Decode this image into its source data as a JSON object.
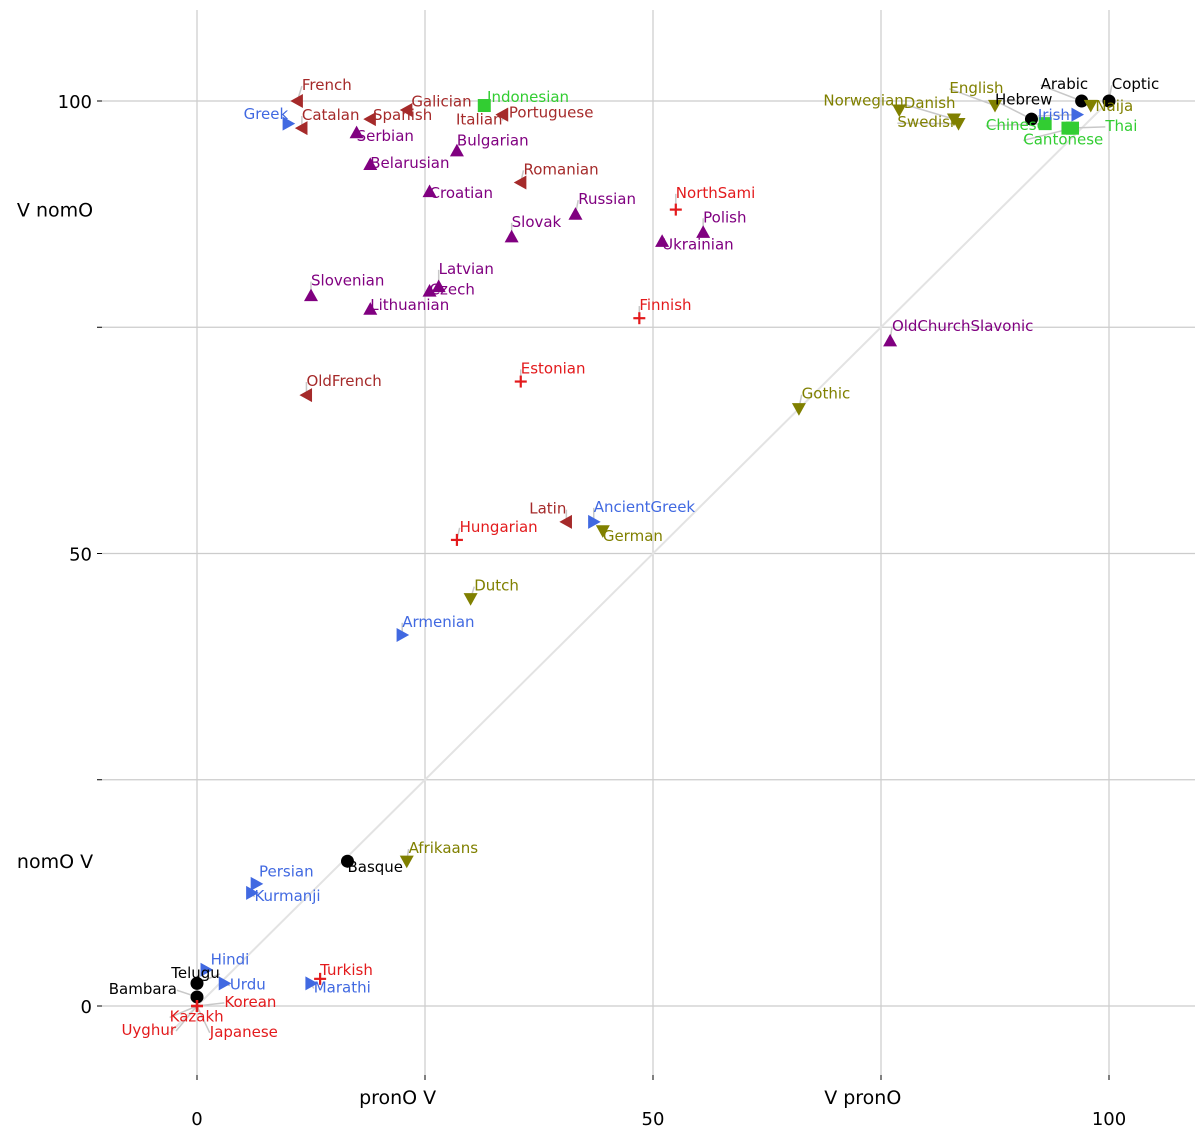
{
  "chart_data": {
    "type": "scatter",
    "title": "",
    "x_tick_labels": [
      {
        "value": 0,
        "text": "0"
      },
      {
        "value": 50,
        "text": "50"
      },
      {
        "value": 100,
        "text": "100"
      }
    ],
    "y_tick_labels": [
      {
        "value": 0,
        "text": "0"
      },
      {
        "value": 50,
        "text": "50"
      },
      {
        "value": 100,
        "text": "100"
      }
    ],
    "x_category_labels": [
      {
        "value": 22,
        "text": "pronO V"
      },
      {
        "value": 73,
        "text": "V pronO"
      }
    ],
    "y_category_labels": [
      {
        "value": 88,
        "text": "V nomO"
      },
      {
        "value": 16,
        "text": "nomO V"
      }
    ],
    "xlim": [
      -10,
      119
    ],
    "ylim": [
      -11,
      110
    ],
    "grid_x": [
      0,
      25,
      50,
      75,
      100
    ],
    "grid_y": [
      0,
      25,
      50,
      75,
      100
    ],
    "diagonal": true,
    "group_colors": {
      "romance": "#a52a2a",
      "slavic": "#800080",
      "germanic": "#808000",
      "indoiranian": "#4169e1",
      "uralic_altaic": "#e31a1c",
      "other": "#000000",
      "asian": "#32cd32"
    },
    "points": [
      {
        "name": "French",
        "x": 11,
        "y": 100,
        "group": "romance",
        "marker": "tri-left",
        "lx": 11.5,
        "ly": 101.2,
        "la": "start"
      },
      {
        "name": "Galician",
        "x": 23,
        "y": 99,
        "group": "romance",
        "marker": "tri-left",
        "lx": 23.5,
        "ly": 99.4,
        "la": "start"
      },
      {
        "name": "Indonesian",
        "x": 31.5,
        "y": 99.5,
        "group": "asian",
        "marker": "square",
        "lx": 31.8,
        "ly": 99.9,
        "la": "start"
      },
      {
        "name": "Greek",
        "x": 10,
        "y": 97.5,
        "group": "indoiranian",
        "marker": "tri-right",
        "lx": 10,
        "ly": 98,
        "la": "end"
      },
      {
        "name": "Catalan",
        "x": 11.5,
        "y": 97,
        "group": "romance",
        "marker": "tri-left",
        "lx": 11.5,
        "ly": 97.9,
        "la": "start"
      },
      {
        "name": "Spanish",
        "x": 19,
        "y": 98,
        "group": "romance",
        "marker": "tri-left",
        "lx": 19.3,
        "ly": 97.9,
        "la": "start"
      },
      {
        "name": "Italian",
        "x": 33.5,
        "y": 98.5,
        "group": "romance",
        "marker": "tri-left",
        "lx": 33.5,
        "ly": 97.4,
        "la": "end"
      },
      {
        "name": "Portuguese",
        "x": 33.5,
        "y": 98.5,
        "group": "romance",
        "marker": "tri-left",
        "lx": 34.2,
        "ly": 98.2,
        "la": "start"
      },
      {
        "name": "Serbian",
        "x": 17.5,
        "y": 96.5,
        "group": "slavic",
        "marker": "tri-up",
        "lx": 17.5,
        "ly": 95.6,
        "la": "start"
      },
      {
        "name": "Bulgarian",
        "x": 28.5,
        "y": 94.5,
        "group": "slavic",
        "marker": "tri-up",
        "lx": 28.5,
        "ly": 95.1,
        "la": "start"
      },
      {
        "name": "Belarusian",
        "x": 19,
        "y": 93,
        "group": "slavic",
        "marker": "tri-up",
        "lx": 19,
        "ly": 92.6,
        "la": "start"
      },
      {
        "name": "Romanian",
        "x": 35.5,
        "y": 91,
        "group": "romance",
        "marker": "tri-left",
        "lx": 35.8,
        "ly": 91.9,
        "la": "start"
      },
      {
        "name": "Croatian",
        "x": 25.5,
        "y": 90,
        "group": "slavic",
        "marker": "tri-up",
        "lx": 25.5,
        "ly": 89.3,
        "la": "start"
      },
      {
        "name": "Russian",
        "x": 41.5,
        "y": 87.5,
        "group": "slavic",
        "marker": "tri-up",
        "lx": 41.8,
        "ly": 88.6,
        "la": "start"
      },
      {
        "name": "NorthSami",
        "x": 52.5,
        "y": 88,
        "group": "uralic_altaic",
        "marker": "cross",
        "lx": 52.5,
        "ly": 89.3,
        "la": "start"
      },
      {
        "name": "Slovak",
        "x": 34.5,
        "y": 85,
        "group": "slavic",
        "marker": "tri-up",
        "lx": 34.5,
        "ly": 86.1,
        "la": "start"
      },
      {
        "name": "Polish",
        "x": 55.5,
        "y": 85.5,
        "group": "slavic",
        "marker": "tri-up",
        "lx": 55.5,
        "ly": 86.6,
        "la": "start"
      },
      {
        "name": "Ukrainian",
        "x": 51,
        "y": 84.5,
        "group": "slavic",
        "marker": "tri-up",
        "lx": 51,
        "ly": 83.6,
        "la": "start"
      },
      {
        "name": "Latvian",
        "x": 26.5,
        "y": 79.5,
        "group": "slavic",
        "marker": "tri-up",
        "lx": 26.5,
        "ly": 80.9,
        "la": "start"
      },
      {
        "name": "Slovenian",
        "x": 12.5,
        "y": 78.5,
        "group": "slavic",
        "marker": "tri-up",
        "lx": 12.5,
        "ly": 79.6,
        "la": "start"
      },
      {
        "name": "Czech",
        "x": 25.5,
        "y": 79,
        "group": "slavic",
        "marker": "tri-up",
        "lx": 25.5,
        "ly": 78.6,
        "la": "start"
      },
      {
        "name": "Lithuanian",
        "x": 19,
        "y": 77,
        "group": "slavic",
        "marker": "tri-up",
        "lx": 19,
        "ly": 76.9,
        "la": "start"
      },
      {
        "name": "Finnish",
        "x": 48.5,
        "y": 76,
        "group": "uralic_altaic",
        "marker": "cross",
        "lx": 48.5,
        "ly": 76.9,
        "la": "start"
      },
      {
        "name": "OldChurchSlavonic",
        "x": 76,
        "y": 73.5,
        "group": "slavic",
        "marker": "tri-up",
        "lx": 76.2,
        "ly": 74.6,
        "la": "start"
      },
      {
        "name": "Estonian",
        "x": 35.5,
        "y": 69,
        "group": "uralic_altaic",
        "marker": "cross",
        "lx": 35.5,
        "ly": 69.9,
        "la": "start"
      },
      {
        "name": "OldFrench",
        "x": 12,
        "y": 67.5,
        "group": "romance",
        "marker": "tri-left",
        "lx": 12,
        "ly": 68.5,
        "la": "start"
      },
      {
        "name": "Gothic",
        "x": 66,
        "y": 66,
        "group": "germanic",
        "marker": "tri-down",
        "lx": 66.3,
        "ly": 67.1,
        "la": "start"
      },
      {
        "name": "Latin",
        "x": 40.5,
        "y": 53.5,
        "group": "romance",
        "marker": "tri-left",
        "lx": 40.5,
        "ly": 54.4,
        "la": "end"
      },
      {
        "name": "AncientGreek",
        "x": 43.5,
        "y": 53.5,
        "group": "indoiranian",
        "marker": "tri-right",
        "lx": 43.5,
        "ly": 54.6,
        "la": "start"
      },
      {
        "name": "German",
        "x": 44.5,
        "y": 52.5,
        "group": "germanic",
        "marker": "tri-down",
        "lx": 44.5,
        "ly": 51.4,
        "la": "start"
      },
      {
        "name": "Hungarian",
        "x": 28.5,
        "y": 51.5,
        "group": "uralic_altaic",
        "marker": "cross",
        "lx": 28.8,
        "ly": 52.4,
        "la": "start"
      },
      {
        "name": "Dutch",
        "x": 30,
        "y": 45,
        "group": "germanic",
        "marker": "tri-down",
        "lx": 30.4,
        "ly": 45.9,
        "la": "start"
      },
      {
        "name": "Armenian",
        "x": 22.5,
        "y": 41,
        "group": "indoiranian",
        "marker": "tri-right",
        "lx": 22.5,
        "ly": 41.9,
        "la": "start"
      },
      {
        "name": "Afrikaans",
        "x": 23,
        "y": 16,
        "group": "germanic",
        "marker": "tri-down",
        "lx": 23.2,
        "ly": 16.9,
        "la": "start"
      },
      {
        "name": "Basque",
        "x": 16.5,
        "y": 16,
        "group": "other",
        "marker": "circle",
        "lx": 16.5,
        "ly": 14.8,
        "la": "start"
      },
      {
        "name": "Persian",
        "x": 6.5,
        "y": 13.5,
        "group": "indoiranian",
        "marker": "tri-right",
        "lx": 6.8,
        "ly": 14.3,
        "la": "start"
      },
      {
        "name": "Kurmanji",
        "x": 6,
        "y": 12.5,
        "group": "indoiranian",
        "marker": "tri-right",
        "lx": 6.3,
        "ly": 11.6,
        "la": "start"
      },
      {
        "name": "Hindi",
        "x": 1,
        "y": 4,
        "group": "indoiranian",
        "marker": "tri-right",
        "lx": 1.5,
        "ly": 4.6,
        "la": "start"
      },
      {
        "name": "Telugu",
        "x": 0,
        "y": 2.5,
        "group": "other",
        "marker": "circle",
        "lx": 2.5,
        "ly": 3.1,
        "la": "end"
      },
      {
        "name": "Urdu",
        "x": 3,
        "y": 2.5,
        "group": "indoiranian",
        "marker": "tri-right",
        "lx": 3.6,
        "ly": 1.8,
        "la": "start"
      },
      {
        "name": "Turkish",
        "x": 13.5,
        "y": 3,
        "group": "uralic_altaic",
        "marker": "cross",
        "lx": 13.5,
        "ly": 3.4,
        "la": "start"
      },
      {
        "name": "Marathi",
        "x": 12.5,
        "y": 2.5,
        "group": "indoiranian",
        "marker": "tri-right",
        "lx": 12.8,
        "ly": 1.5,
        "la": "start"
      },
      {
        "name": "Bambara",
        "x": 0,
        "y": 1,
        "group": "other",
        "marker": "circle",
        "lx": -2.2,
        "ly": 1.3,
        "la": "end"
      },
      {
        "name": "Korean",
        "x": 0,
        "y": 0,
        "group": "uralic_altaic",
        "marker": "cross",
        "lx": 3,
        "ly": -0.1,
        "la": "start"
      },
      {
        "name": "Kazakh",
        "x": 0,
        "y": 0,
        "group": "uralic_altaic",
        "marker": "cross",
        "lx": -3,
        "ly": -1.7,
        "la": "start"
      },
      {
        "name": "Uyghur",
        "x": 0,
        "y": 0,
        "group": "uralic_altaic",
        "marker": "cross",
        "lx": -2.3,
        "ly": -3.2,
        "la": "end"
      },
      {
        "name": "Japanese",
        "x": 0,
        "y": 0,
        "group": "uralic_altaic",
        "marker": "cross",
        "lx": 1.4,
        "ly": -3.4,
        "la": "start"
      },
      {
        "name": "Norwegian",
        "x": 77,
        "y": 99,
        "group": "germanic",
        "marker": "tri-down",
        "lx": 77.5,
        "ly": 99.5,
        "la": "end"
      },
      {
        "name": "Danish",
        "x": 83,
        "y": 98,
        "group": "germanic",
        "marker": "tri-down",
        "lx": 77.5,
        "ly": 99.2,
        "la": "start"
      },
      {
        "name": "English",
        "x": 87.5,
        "y": 99.5,
        "group": "germanic",
        "marker": "tri-down",
        "lx": 82.5,
        "ly": 100.9,
        "la": "start"
      },
      {
        "name": "Swedish",
        "x": 83.5,
        "y": 97.5,
        "group": "germanic",
        "marker": "tri-down",
        "lx": 76.8,
        "ly": 97.1,
        "la": "start"
      },
      {
        "name": "Hebrew",
        "x": 91.5,
        "y": 98,
        "group": "other",
        "marker": "circle",
        "lx": 87.5,
        "ly": 99.6,
        "la": "start"
      },
      {
        "name": "Arabic",
        "x": 97,
        "y": 100,
        "group": "other",
        "marker": "circle",
        "lx": 92.5,
        "ly": 101.3,
        "la": "start"
      },
      {
        "name": "Coptic",
        "x": 100,
        "y": 100,
        "group": "other",
        "marker": "circle",
        "lx": 100.3,
        "ly": 101.3,
        "la": "start"
      },
      {
        "name": "Irish",
        "x": 96.5,
        "y": 98.5,
        "group": "indoiranian",
        "marker": "tri-right",
        "lx": 92.2,
        "ly": 97.9,
        "la": "start"
      },
      {
        "name": "Naija",
        "x": 98,
        "y": 99.5,
        "group": "germanic",
        "marker": "tri-down",
        "lx": 98.5,
        "ly": 98.9,
        "la": "start"
      },
      {
        "name": "Chinese",
        "x": 93,
        "y": 97.5,
        "group": "asian",
        "marker": "square",
        "lx": 86.5,
        "ly": 96.8,
        "la": "start"
      },
      {
        "name": "Cantonese",
        "x": 96,
        "y": 97,
        "group": "asian",
        "marker": "square",
        "lx": 90.6,
        "ly": 95.2,
        "la": "start"
      },
      {
        "name": "Thai",
        "x": 95.5,
        "y": 97,
        "group": "asian",
        "marker": "square",
        "lx": 99.6,
        "ly": 96.7,
        "la": "start"
      }
    ]
  }
}
